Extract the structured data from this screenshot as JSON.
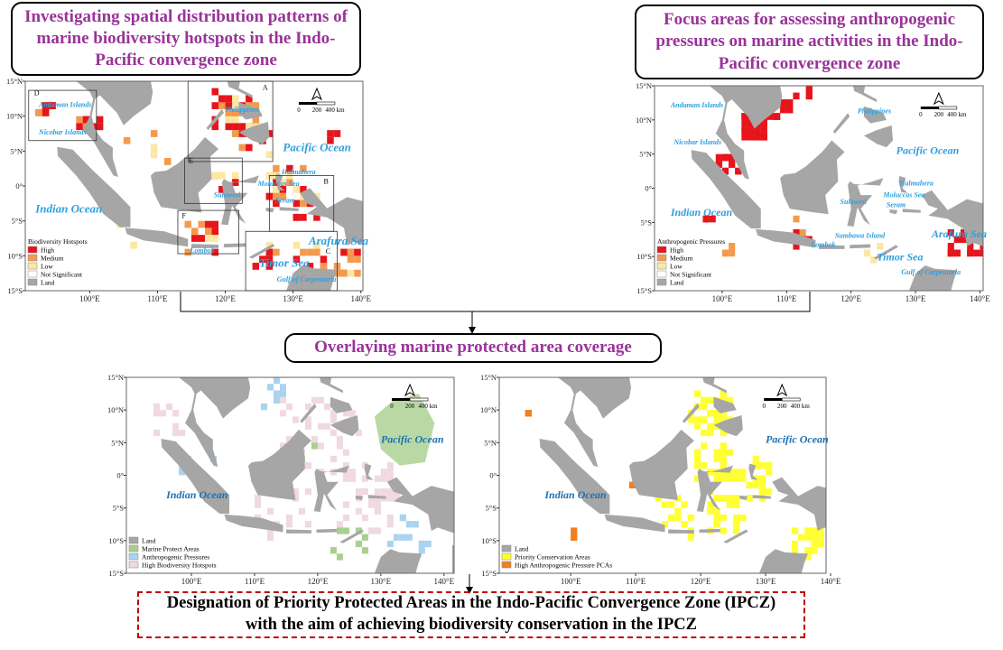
{
  "steps": {
    "step1": "Investigating spatial distribution patterns of marine biodiversity hotspots in the Indo-Pacific convergence zone",
    "step2": "Focus areas for assessing anthropogenic pressures on marine activities in the Indo-Pacific convergence zone",
    "step3": "Overlaying marine protected area coverage",
    "step4": "Designation of Priority Protected Areas in the Indo-Pacific Convergence Zone (IPCZ) with the aim of achieving biodiversity conservation in the IPCZ"
  },
  "axes": {
    "lat": [
      "15°N",
      "10°N",
      "5°N",
      "0°",
      "5°S",
      "10°S",
      "15°S"
    ],
    "lon": [
      "100°E",
      "110°E",
      "120°E",
      "130°E",
      "140°E"
    ]
  },
  "scale_bar": {
    "zero": "0",
    "mid": "200",
    "end": "400 km"
  },
  "maps": [
    {
      "labels": [
        "Andaman Islands",
        "Nicobar Islands",
        "Philippines",
        "Pacific Ocean",
        "Halmahera",
        "Moluccas Sea",
        "Sulawesi",
        "Seram",
        "Indian Ocean",
        "Lombok",
        "Arafura Sea",
        "Timor Sea",
        "Gulf of Carpentaria"
      ],
      "box_letters": [
        "A",
        "B",
        "C",
        "D",
        "E",
        "F"
      ],
      "legend": {
        "title": "Biodiversity Hotspots",
        "items": [
          "High",
          "Medium",
          "Low",
          "Not Significant",
          "Land"
        ]
      }
    },
    {
      "labels": [
        "Andaman Islands",
        "Nicobar Islands",
        "Philippines",
        "Pacific Ocean",
        "Halmahera",
        "Moluccas Sea",
        "Sulawesi",
        "Seram",
        "Indian Ocean",
        "Lombok",
        "Sumbawa Island",
        "Arafura Sea",
        "Timor Sea",
        "Gulf of Carpentaria"
      ],
      "legend": {
        "title": "Anthropogenic Pressures",
        "items": [
          "High",
          "Medium",
          "Low",
          "Not Significant",
          "Land"
        ]
      }
    },
    {
      "labels": [
        "Pacific Ocean",
        "Indian Ocean"
      ],
      "legend": {
        "items": [
          "Land",
          "Marine Protect Areas",
          "Anthropogenic Pressures",
          "High Biodiversity Hotspots"
        ]
      }
    },
    {
      "labels": [
        "Pacific Ocean",
        "Indian Ocean"
      ],
      "legend": {
        "items": [
          "Land",
          "Priority Conservation Areas",
          "High Anthropogenic Pressure PCAs"
        ]
      }
    }
  ]
}
